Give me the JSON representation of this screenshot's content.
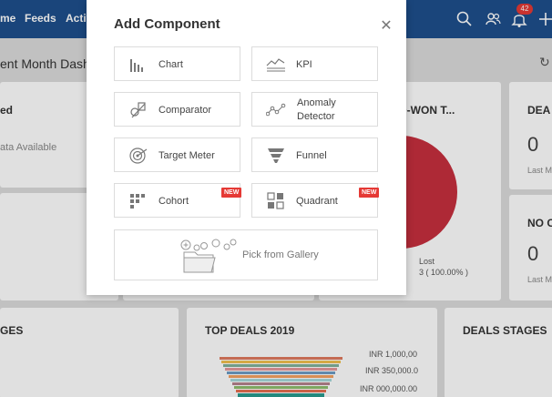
{
  "nav": {
    "items": [
      "me",
      "Feeds",
      "Activ"
    ],
    "notification_count": "42"
  },
  "dashboard": {
    "title": "ent Month Dashb",
    "cards": {
      "c1_title": "ed",
      "c1_sub": "ata Available",
      "c3_title": "D-WON T...",
      "c3_lost_label": "Lost",
      "c3_lost_value": "3 ( 100.00% )",
      "c4_title": "DEA",
      "c4_value": "0",
      "c4_sub": "Last M",
      "c5_title": "NO C",
      "c5_value": "0",
      "c5_sub": "Last M",
      "b1_title": "GES",
      "b2_title": "TOP DEALS 2019",
      "b2_label1": "INR 1,000,00",
      "b2_label2": "INR 350,000.0",
      "b2_label3": "INR 000,000.00",
      "b3_title": "DEALS STAGES"
    }
  },
  "modal": {
    "title": "Add Component",
    "close_icon": "close-icon",
    "tiles": {
      "chart": "Chart",
      "kpi": "KPI",
      "comparator": "Comparator",
      "anomaly_line1": "Anomaly",
      "anomaly_line2": "Detector",
      "target_meter": "Target Meter",
      "funnel": "Funnel",
      "cohort": "Cohort",
      "quadrant": "Quadrant",
      "new_badge": "NEW"
    },
    "gallery": "Pick from Gallery"
  },
  "colors": {
    "nav_bg": "#1e4f8c",
    "badge": "#e53935",
    "pie": "#c62f3e"
  }
}
